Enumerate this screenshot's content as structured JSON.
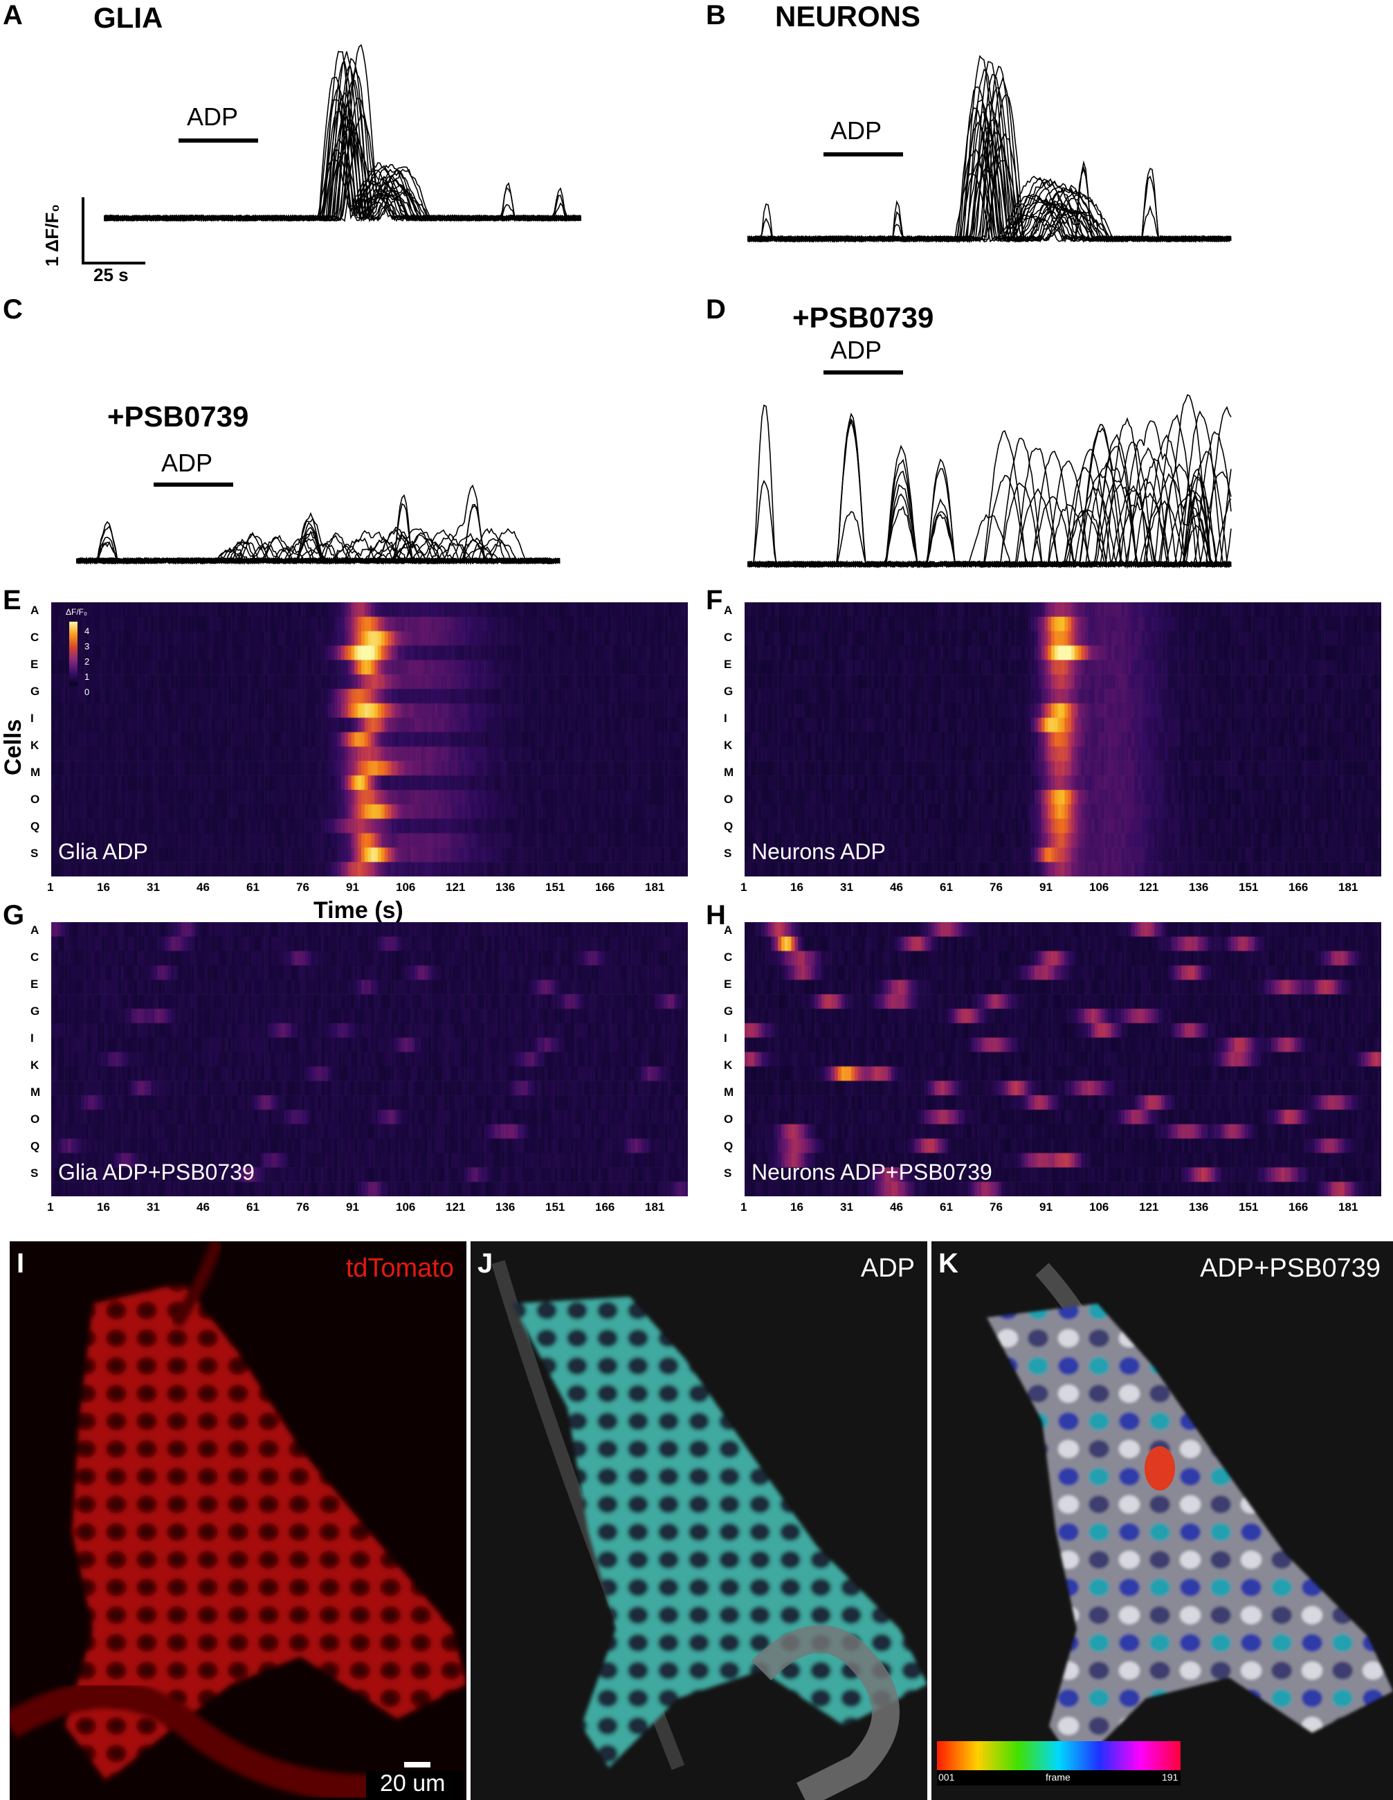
{
  "panels": {
    "A": {
      "letter": "A",
      "title": "GLIA",
      "stimulus": "ADP"
    },
    "B": {
      "letter": "B",
      "title": "NEURONS",
      "stimulus": "ADP"
    },
    "C": {
      "letter": "C",
      "title": "+PSB0739",
      "stimulus": "ADP"
    },
    "D": {
      "letter": "D",
      "title": "+PSB0739",
      "stimulus": "ADP"
    },
    "E": {
      "letter": "E",
      "label": "Glia ADP"
    },
    "F": {
      "letter": "F",
      "label": "Neurons ADP"
    },
    "G": {
      "letter": "G",
      "label": "Glia ADP+PSB0739"
    },
    "H": {
      "letter": "H",
      "label": "Neurons ADP+PSB0739"
    },
    "I": {
      "letter": "I",
      "label": "tdTomato",
      "scalebar": "20 um"
    },
    "J": {
      "letter": "J",
      "label": "ADP"
    },
    "K": {
      "letter": "K",
      "label": "ADP+PSB0739",
      "colorbar_min": "001",
      "colorbar_mid": "frame",
      "colorbar_max": "191"
    }
  },
  "scale": {
    "y": "1 ΔF/F₀",
    "x": "25 s"
  },
  "axes": {
    "ylabel": "Cells",
    "xlabel": "Time (s)"
  },
  "colorbar": {
    "title": "ΔF/F₀",
    "ticks": [
      "4",
      "3",
      "2",
      "1",
      "0"
    ]
  },
  "chart_data": [
    {
      "type": "line",
      "panel": "A",
      "description_series": "glia calcium traces",
      "ylabel": "1 ΔF/F₀",
      "stimulus": "ADP"
    },
    {
      "type": "heatmap",
      "panel": "E",
      "rows": [
        "A",
        "C",
        "E",
        "G",
        "I",
        "K",
        "M",
        "O",
        "Q",
        "S"
      ],
      "x_ticks": [
        "1",
        "16",
        "31",
        "46",
        "61",
        "76",
        "91",
        "106",
        "121",
        "136",
        "151",
        "166",
        "181"
      ],
      "colorbar": {
        "min": 0,
        "max": 4
      }
    }
  ],
  "heat_rows": [
    "A",
    "C",
    "E",
    "G",
    "I",
    "K",
    "M",
    "O",
    "Q",
    "S"
  ],
  "heat_ticks": [
    "1",
    "16",
    "31",
    "46",
    "61",
    "76",
    "91",
    "106",
    "121",
    "136",
    "151",
    "166",
    "181"
  ]
}
